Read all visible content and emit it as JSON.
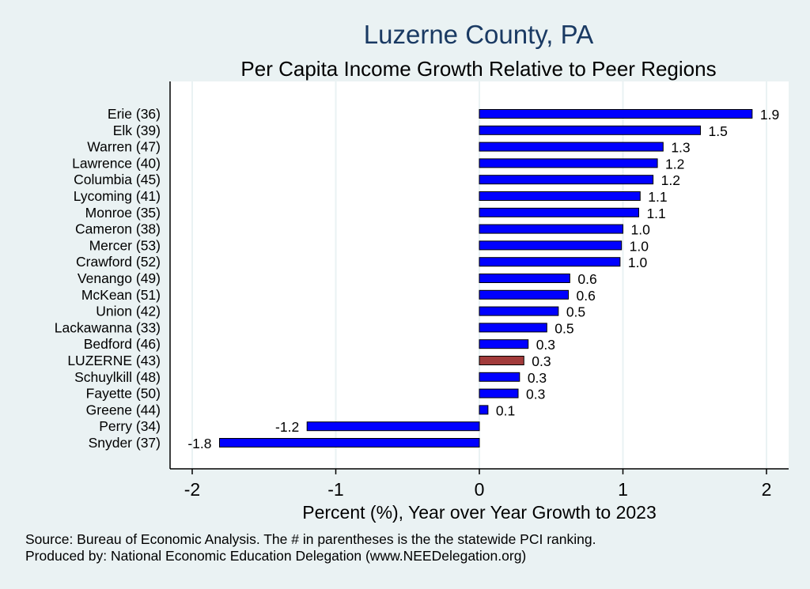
{
  "chart_data": {
    "type": "bar",
    "orientation": "horizontal",
    "title": "Luzerne County, PA",
    "subtitle": "Per Capita Income Growth Relative to Peer Regions",
    "xlabel": "Percent (%), Year over Year Growth to 2023",
    "ylabel": "",
    "xlim": [
      -2.15,
      2.15
    ],
    "xticks": [
      -2,
      -1,
      0,
      1,
      2
    ],
    "xtick_labels": [
      "-2",
      "-1",
      "0",
      "1",
      "2"
    ],
    "grid": true,
    "categories": [
      "Erie (36)",
      "Elk (39)",
      "Warren (47)",
      "Lawrence (40)",
      "Columbia (45)",
      "Lycoming (41)",
      "Monroe (35)",
      "Cameron (38)",
      "Mercer (53)",
      "Crawford (52)",
      "Venango (49)",
      "McKean (51)",
      "Union (42)",
      "Lackawanna (33)",
      "Bedford (46)",
      "LUZERNE (43)",
      "Schuylkill (48)",
      "Fayette (50)",
      "Greene (44)",
      "Perry (34)",
      "Snyder (37)"
    ],
    "values": [
      1.9,
      1.54,
      1.28,
      1.24,
      1.21,
      1.12,
      1.11,
      1.0,
      0.99,
      0.98,
      0.63,
      0.62,
      0.55,
      0.47,
      0.34,
      0.31,
      0.28,
      0.27,
      0.06,
      -1.2,
      -1.81
    ],
    "value_labels": [
      "1.9",
      "1.5",
      "1.3",
      "1.2",
      "1.2",
      "1.1",
      "1.1",
      "1.0",
      "1.0",
      "1.0",
      "0.6",
      "0.6",
      "0.5",
      "0.5",
      "0.3",
      "0.3",
      "0.3",
      "0.3",
      "0.1",
      "-1.2",
      "-1.8"
    ],
    "highlight": "LUZERNE (43)",
    "colors": {
      "bar": "#0000ff",
      "highlight": "#a23b3b",
      "bar_edge": "#000000",
      "grid": "#eaf2f3",
      "plot_bg": "#ffffff",
      "title": "#1a3a63"
    }
  },
  "footer": {
    "source": "Source: Bureau of Economic Analysis. The # in parentheses is the the statewide PCI ranking.",
    "produced_by": "Produced by: National Economic Education Delegation (www.NEEDelegation.org)"
  }
}
